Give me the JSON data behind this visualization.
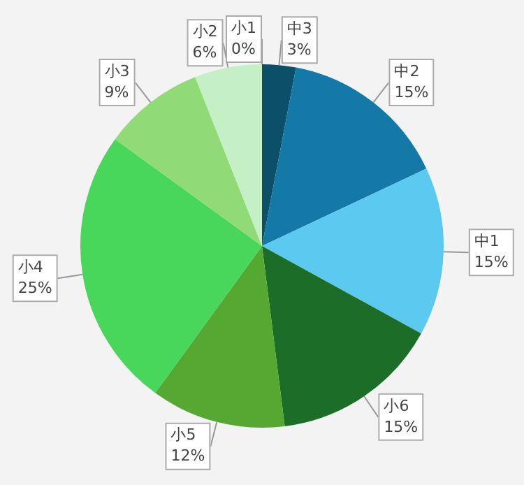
{
  "chart_data": {
    "type": "pie",
    "categories": [
      "中3",
      "中2",
      "中1",
      "小6",
      "小5",
      "小4",
      "小3",
      "小2",
      "小1"
    ],
    "values": [
      3,
      15,
      15,
      15,
      12,
      25,
      9,
      6,
      0
    ],
    "value_labels": [
      "3%",
      "15%",
      "15%",
      "15%",
      "12%",
      "25%",
      "9%",
      "6%",
      "0%"
    ],
    "colors": [
      "#0b4f69",
      "#1479a6",
      "#5cc9f1",
      "#1b6d27",
      "#55a832",
      "#48d65b",
      "#90db77",
      "#c5f0c5",
      "#c5f0c5"
    ],
    "legend": false
  }
}
